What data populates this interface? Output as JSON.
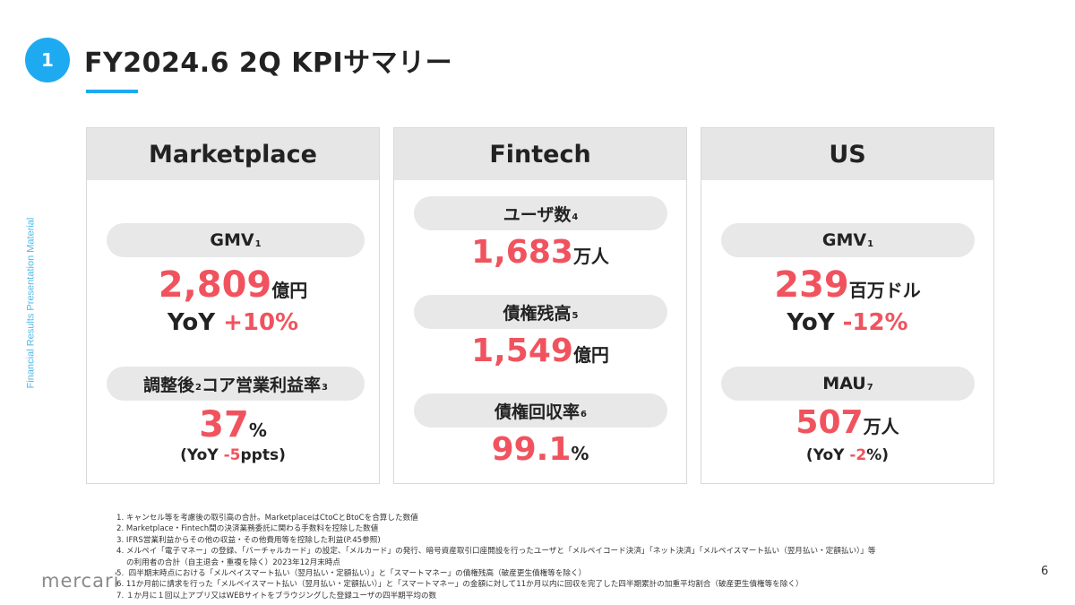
{
  "side_label": "Financial Results Presentation Material",
  "header": {
    "number": "1",
    "title": "FY2024.6 2Q KPIサマリー"
  },
  "cards": {
    "marketplace": {
      "title": "Marketplace",
      "gmv": {
        "label": "GMV",
        "note": "1",
        "value": "2,809",
        "unit": "億円",
        "yoy_prefix": "YoY ",
        "yoy_value": "+10%"
      },
      "margin": {
        "label": "調整後",
        "note1": "2",
        "label2": "コア営業利益率",
        "note2": "3",
        "value": "37",
        "unit": "%",
        "yoy_open": "(YoY ",
        "yoy_value": "-5",
        "yoy_close": "ppts)"
      }
    },
    "fintech": {
      "title": "Fintech",
      "users": {
        "label": "ユーザ数",
        "note": "4",
        "value": "1,683",
        "unit": "万人"
      },
      "balance": {
        "label": "債権残高",
        "note": "5",
        "value": "1,549",
        "unit": "億円"
      },
      "recovery": {
        "label": "債権回収率",
        "note": "6",
        "value": "99.1",
        "unit": "%"
      }
    },
    "us": {
      "title": "US",
      "gmv": {
        "label": "GMV",
        "note": "1",
        "value": "239",
        "unit": "百万ドル",
        "yoy_prefix": "YoY ",
        "yoy_value": "-12%"
      },
      "mau": {
        "label": "MAU",
        "note": "7",
        "value": "507",
        "unit": "万人",
        "yoy_open": "(YoY ",
        "yoy_value": "-2",
        "yoy_close": "%)"
      }
    }
  },
  "footnotes": [
    "1. キャンセル等を考慮後の取引高の合計。MarketplaceはCtoCとBtoCを合算した数値",
    "2. Marketplace・Fintech間の決済業務委託に関わる手数料を控除した数値",
    "3. IFRS営業利益からその他の収益・その他費用等を控除した利益(P.45参照)",
    "4. メルペイ「電子マネー」の登録、「バーチャルカード」の設定、「メルカード」の発行、暗号資産取引口座開設を行ったユーザと「メルペイコード決済」「ネット決済」「メルペイスマート払い（翌月払い・定額払い）」等",
    "    の利用者の合計（自主退会・重複を除く）2023年12月末時点",
    "5.  四半期末時点における「メルペイスマート払い（翌月払い・定額払い）」と「スマートマネー」の債権残高（破産更生債権等を除く）",
    "6. 11か月前に請求を行った「メルペイスマート払い（翌月払い・定額払い）」と「スマートマネー」の金額に対して11か月以内に回収を完了した四半期累計の加重平均割合（破産更生債権等を除く）",
    "7. １か月に１回以上アプリ又はWEBサイトをブラウジングした登録ユーザの四半期平均の数"
  ],
  "footer": {
    "logo": "mercari",
    "page_number": "6"
  }
}
